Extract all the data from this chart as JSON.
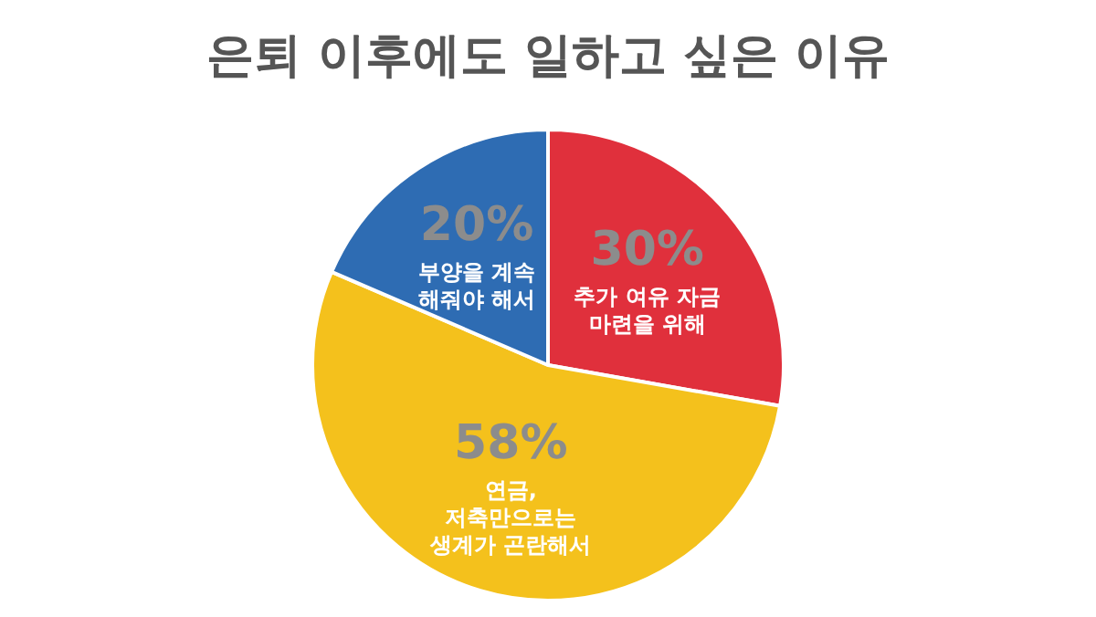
{
  "chart_data": {
    "type": "pie",
    "title": "은퇴 이후에도 일하고 싶은 이유",
    "categories": [
      "추가 여유 자금 마련을 위해",
      "연금, 저축만으로는 생계가 곤란해서",
      "부양을 계속 해줘야 해서"
    ],
    "values": [
      30,
      58,
      20
    ],
    "value_labels": [
      "30%",
      "58%",
      "20%"
    ],
    "colors": [
      "#e0303c",
      "#f4c11c",
      "#2e6cb3"
    ],
    "legend": false
  }
}
